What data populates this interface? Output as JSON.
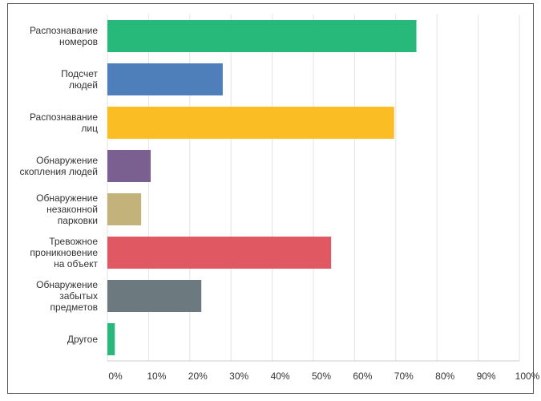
{
  "chart_data": {
    "type": "bar",
    "orientation": "horizontal",
    "categories": [
      "Распознавание\nномеров",
      "Подсчет\nлюдей",
      "Распознавание\nлиц",
      "Обнаружение\nскопления людей",
      "Обнаружение\nнезаконной\nпарковки",
      "Тревожное\nпроникновение\nна объект",
      "Обнаружение\nзабытых\nпредметов",
      "Другое"
    ],
    "values": [
      75,
      28,
      69.6,
      10.5,
      8.2,
      54.3,
      22.8,
      1.8
    ],
    "colors": [
      "#26b979",
      "#4f7fba",
      "#fbbd24",
      "#7a5f91",
      "#c3b27a",
      "#e05862",
      "#6c7a80",
      "#26b979"
    ],
    "xlim": [
      0,
      100
    ],
    "xticks": [
      {
        "value": 0,
        "label": "0%"
      },
      {
        "value": 10,
        "label": "10%"
      },
      {
        "value": 20,
        "label": "20%"
      },
      {
        "value": 30,
        "label": "30%"
      },
      {
        "value": 40,
        "label": "40%"
      },
      {
        "value": 50,
        "label": "50%"
      },
      {
        "value": 60,
        "label": "60%"
      },
      {
        "value": 70,
        "label": "70%"
      },
      {
        "value": 80,
        "label": "80%"
      },
      {
        "value": 90,
        "label": "90%"
      },
      {
        "value": 100,
        "label": "100%"
      }
    ],
    "grid": true
  }
}
